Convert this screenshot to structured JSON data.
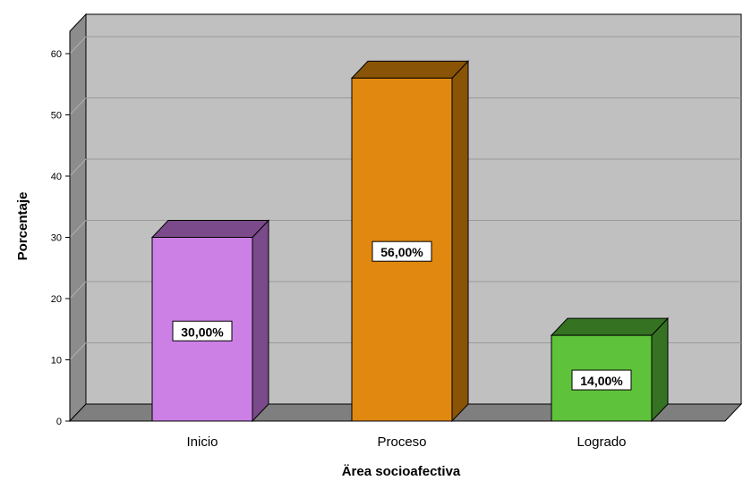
{
  "chart_data": {
    "type": "bar",
    "title": "",
    "xlabel": "Ärea socioafectiva",
    "ylabel": "Porcentaje",
    "ylim": [
      0,
      60
    ],
    "yticks": [
      0,
      10,
      20,
      30,
      40,
      50,
      60
    ],
    "grid": true,
    "legend": "none",
    "categories": [
      "Inicio",
      "Proceso",
      "Logrado"
    ],
    "values": [
      30,
      56,
      14
    ],
    "data_labels": [
      "30,00%",
      "56,00%",
      "14,00%"
    ],
    "colors": [
      "#cc80e6",
      "#e0880f",
      "#5fc23b"
    ],
    "side_colors": [
      "#7a4a8a",
      "#8a5406",
      "#357322"
    ],
    "background_color": "#c0c0c0",
    "wall_side_color": "#8c8c8c",
    "floor_color": "#7f7f7f"
  }
}
